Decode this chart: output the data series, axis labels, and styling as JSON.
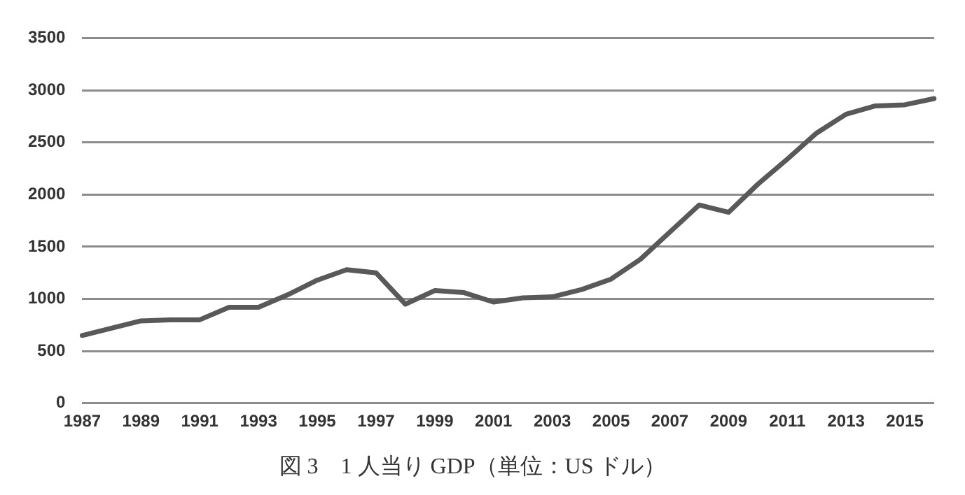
{
  "chart_data": {
    "type": "line",
    "title": "図 3　1 人当り GDP（単位：US ドル）",
    "categories": [
      "1987",
      null,
      "1989",
      null,
      "1991",
      null,
      "1993",
      null,
      "1995",
      null,
      "1997",
      null,
      "1999",
      null,
      "2001",
      null,
      "2003",
      null,
      "2005",
      null,
      "2007",
      null,
      "2009",
      null,
      "2011",
      null,
      "2013",
      null,
      "2015",
      null
    ],
    "series": [
      {
        "color": "#595959",
        "values": [
          650,
          720,
          790,
          800,
          800,
          920,
          920,
          1040,
          1180,
          1280,
          1250,
          950,
          1080,
          1060,
          970,
          1010,
          1020,
          1090,
          1190,
          1380,
          1640,
          1900,
          1830,
          2100,
          2340,
          2590,
          2770,
          2850,
          2860,
          2920
        ]
      }
    ],
    "ylim": [
      0,
      3500
    ],
    "yticks": [
      0,
      500,
      1000,
      1500,
      2000,
      2500,
      3000,
      3500
    ],
    "grid": "y",
    "legend": false,
    "marker": "none",
    "line_style": "solid"
  }
}
